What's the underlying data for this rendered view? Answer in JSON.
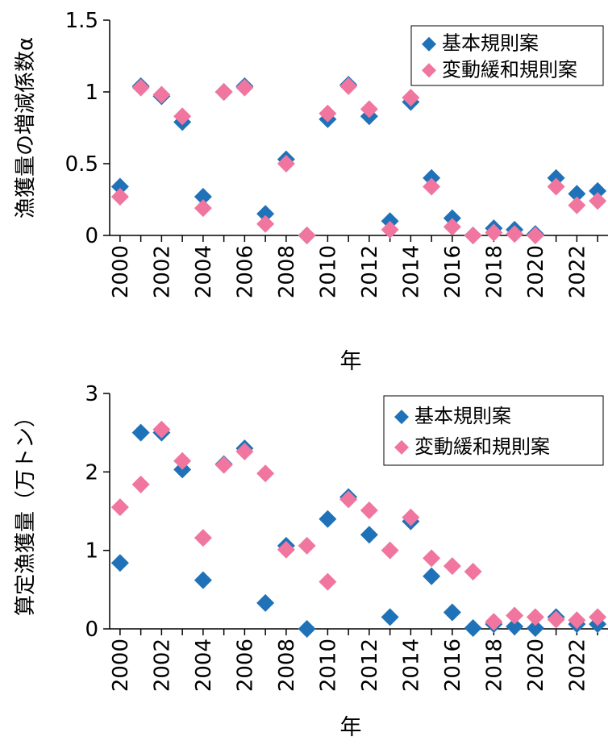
{
  "colors": {
    "base": "#1f72b8",
    "relaxed": "#f0769f",
    "axis": "#000000"
  },
  "chart_data": [
    {
      "type": "scatter",
      "xlabel": "年",
      "ylabel": "漁獲量の増減係数α",
      "xlim": [
        1999.5,
        2023.5
      ],
      "ylim": [
        0,
        1.5
      ],
      "ytick_values": [
        0,
        0.5,
        1,
        1.5
      ],
      "ytick_labels": [
        "0",
        "0.5",
        "1",
        "1.5"
      ],
      "xtick_values": [
        2000,
        2002,
        2004,
        2006,
        2008,
        2010,
        2012,
        2014,
        2016,
        2018,
        2020,
        2022
      ],
      "xtick_labels": [
        "2000",
        "2002",
        "2004",
        "2006",
        "2008",
        "2010",
        "2012",
        "2014",
        "2016",
        "2018",
        "2020",
        "2022"
      ],
      "grid": false,
      "legend_position": "top-right",
      "x": [
        2000,
        2001,
        2002,
        2003,
        2004,
        2005,
        2006,
        2007,
        2008,
        2009,
        2010,
        2011,
        2012,
        2013,
        2014,
        2015,
        2016,
        2017,
        2018,
        2019,
        2020,
        2021,
        2022,
        2023
      ],
      "series": [
        {
          "name": "基本規則案",
          "color": "#1f72b8",
          "values": [
            0.34,
            1.04,
            0.97,
            0.79,
            0.27,
            1.0,
            1.04,
            0.15,
            0.53,
            0.0,
            0.81,
            1.05,
            0.83,
            0.1,
            0.93,
            0.4,
            0.12,
            0.0,
            0.05,
            0.04,
            0.01,
            0.4,
            0.29,
            0.31
          ]
        },
        {
          "name": "変動緩和規則案",
          "color": "#f0769f",
          "values": [
            0.27,
            1.03,
            0.98,
            0.83,
            0.19,
            1.0,
            1.03,
            0.08,
            0.5,
            0.0,
            0.85,
            1.04,
            0.88,
            0.04,
            0.96,
            0.34,
            0.06,
            0.0,
            0.02,
            0.01,
            0.0,
            0.34,
            0.21,
            0.24
          ]
        }
      ]
    },
    {
      "type": "scatter",
      "xlabel": "年",
      "ylabel": "算定漁獲量（万トン）",
      "xlim": [
        1999.5,
        2023.5
      ],
      "ylim": [
        0,
        3
      ],
      "ytick_values": [
        0,
        1,
        2,
        3
      ],
      "ytick_labels": [
        "0",
        "1",
        "2",
        "3"
      ],
      "xtick_values": [
        2000,
        2002,
        2004,
        2006,
        2008,
        2010,
        2012,
        2014,
        2016,
        2018,
        2020,
        2022
      ],
      "xtick_labels": [
        "2000",
        "2002",
        "2004",
        "2006",
        "2008",
        "2010",
        "2012",
        "2014",
        "2016",
        "2018",
        "2020",
        "2022"
      ],
      "grid": false,
      "legend_position": "top-right",
      "x": [
        2000,
        2001,
        2002,
        2003,
        2004,
        2005,
        2006,
        2007,
        2008,
        2009,
        2010,
        2011,
        2012,
        2013,
        2014,
        2015,
        2016,
        2017,
        2018,
        2019,
        2020,
        2021,
        2022,
        2023
      ],
      "series": [
        {
          "name": "基本規則案",
          "color": "#1f72b8",
          "values": [
            0.84,
            2.5,
            2.5,
            2.03,
            0.62,
            2.1,
            2.3,
            0.33,
            1.06,
            0.0,
            1.4,
            1.68,
            1.2,
            0.15,
            1.37,
            0.67,
            0.21,
            0.01,
            0.06,
            0.03,
            0.01,
            0.15,
            0.06,
            0.06
          ]
        },
        {
          "name": "変動緩和規則案",
          "color": "#f0769f",
          "values": [
            1.55,
            1.84,
            2.54,
            2.14,
            1.16,
            2.09,
            2.26,
            1.98,
            1.01,
            1.06,
            0.6,
            1.65,
            1.51,
            1.0,
            1.42,
            0.9,
            0.8,
            0.73,
            0.09,
            0.17,
            0.15,
            0.12,
            0.11,
            0.15
          ]
        }
      ]
    }
  ]
}
